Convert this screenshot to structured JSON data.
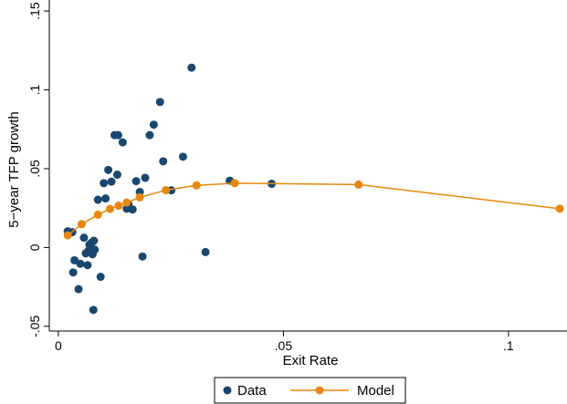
{
  "chart_data": {
    "type": "scatter",
    "xlabel": "Exit Rate",
    "ylabel": "5−year TFP growth",
    "xlim": [
      -0.002,
      0.113
    ],
    "ylim": [
      -0.053,
      0.157
    ],
    "x_ticks": [
      {
        "value": 0,
        "label": "0"
      },
      {
        "value": 0.05,
        "label": ".05"
      },
      {
        "value": 0.1,
        "label": ".1"
      }
    ],
    "y_ticks": [
      {
        "value": -0.05,
        "label": "-.05"
      },
      {
        "value": 0,
        "label": "0"
      },
      {
        "value": 0.05,
        "label": ".05"
      },
      {
        "value": 0.1,
        "label": ".1"
      },
      {
        "value": 0.15,
        "label": ".15"
      }
    ],
    "grid": false,
    "legend_position": "bottom",
    "series": [
      {
        "name": "Data",
        "kind": "scatter",
        "color": "#1a476f",
        "points": [
          [
            0.0021,
            0.0103
          ],
          [
            0.0031,
            0.0097
          ],
          [
            0.0033,
            -0.0158
          ],
          [
            0.0036,
            -0.0081
          ],
          [
            0.0045,
            -0.0264
          ],
          [
            0.0049,
            -0.0103
          ],
          [
            0.0057,
            0.0062
          ],
          [
            0.0061,
            -0.0037
          ],
          [
            0.0065,
            -0.0112
          ],
          [
            0.0067,
            -0.0021
          ],
          [
            0.0069,
            0.0018
          ],
          [
            0.0072,
            -0.0015
          ],
          [
            0.0074,
            0.0031
          ],
          [
            0.0076,
            -0.0043
          ],
          [
            0.0078,
            -0.0396
          ],
          [
            0.0079,
            0.0043
          ],
          [
            0.0081,
            -0.0014
          ],
          [
            0.0088,
            0.0303
          ],
          [
            0.0094,
            -0.0186
          ],
          [
            0.0101,
            0.0408
          ],
          [
            0.0105,
            0.0311
          ],
          [
            0.0111,
            0.0492
          ],
          [
            0.0118,
            0.0418
          ],
          [
            0.0125,
            0.0713
          ],
          [
            0.0131,
            0.0462
          ],
          [
            0.0133,
            0.0713
          ],
          [
            0.0143,
            0.0667
          ],
          [
            0.0152,
            0.0246
          ],
          [
            0.0156,
            0.0273
          ],
          [
            0.0165,
            0.0241
          ],
          [
            0.0173,
            0.0421
          ],
          [
            0.0181,
            0.0352
          ],
          [
            0.0187,
            -0.0057
          ],
          [
            0.0193,
            0.0442
          ],
          [
            0.0203,
            0.0713
          ],
          [
            0.0212,
            0.0779
          ],
          [
            0.0226,
            0.0923
          ],
          [
            0.0233,
            0.0547
          ],
          [
            0.0251,
            0.0363
          ],
          [
            0.0277,
            0.0576
          ],
          [
            0.0296,
            0.1141
          ],
          [
            0.0327,
            -0.0029
          ],
          [
            0.0381,
            0.0424
          ],
          [
            0.0474,
            0.0404
          ]
        ]
      },
      {
        "name": "Model",
        "kind": "line",
        "color": "#e8870e",
        "points": [
          [
            0.0021,
            0.0077
          ],
          [
            0.0052,
            0.0148
          ],
          [
            0.0088,
            0.0208
          ],
          [
            0.0115,
            0.0245
          ],
          [
            0.0134,
            0.0265
          ],
          [
            0.0152,
            0.0285
          ],
          [
            0.0181,
            0.0318
          ],
          [
            0.0239,
            0.0364
          ],
          [
            0.0307,
            0.0394
          ],
          [
            0.0392,
            0.0408
          ],
          [
            0.0667,
            0.0399
          ],
          [
            0.1114,
            0.0246
          ]
        ]
      }
    ]
  }
}
